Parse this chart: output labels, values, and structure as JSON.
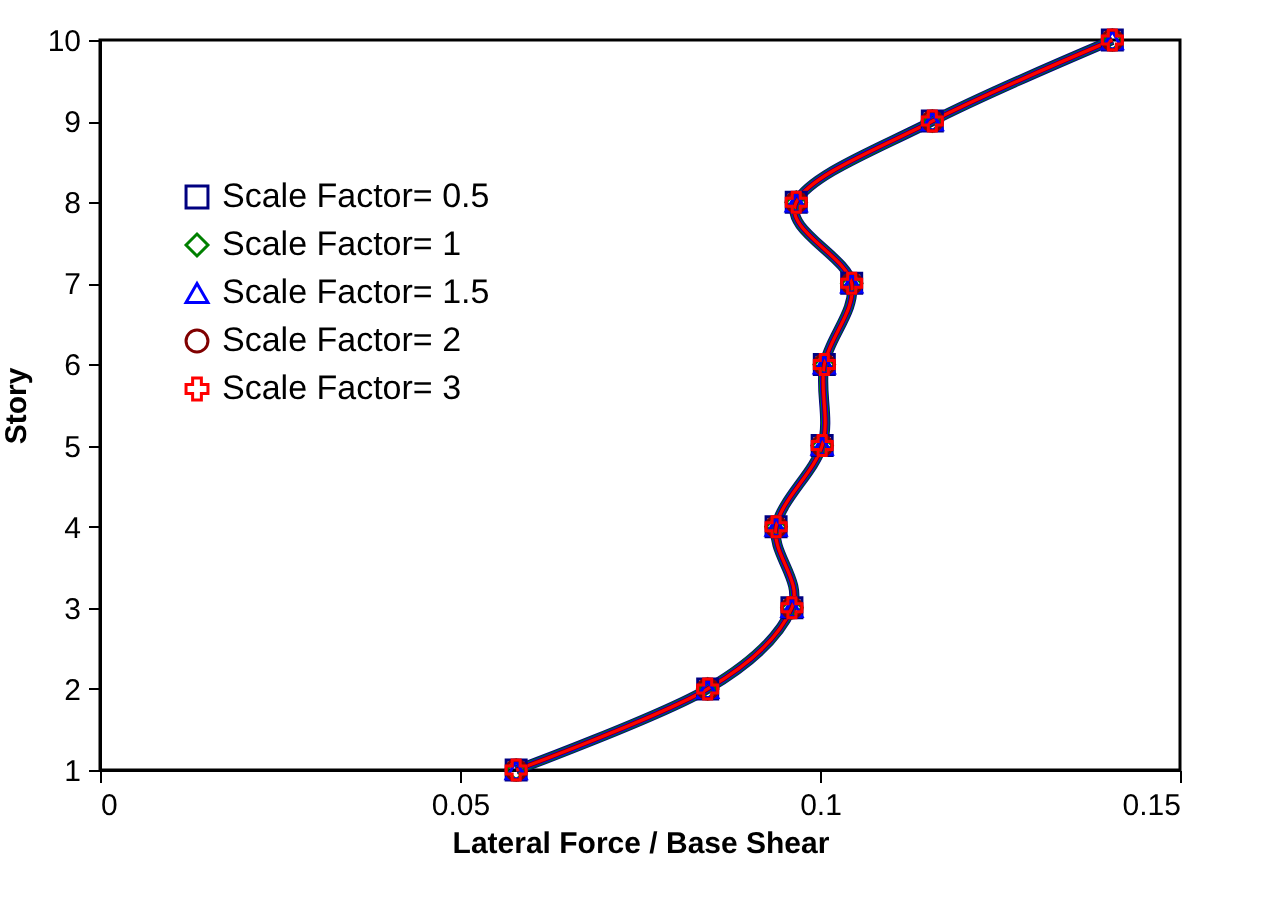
{
  "chart_data": {
    "type": "line",
    "xlabel": "Lateral Force / Base Shear",
    "ylabel": "Story",
    "xlim": [
      0,
      0.15
    ],
    "xticks": [
      0,
      0.05,
      0.1,
      0.15
    ],
    "ylim": [
      1,
      10
    ],
    "yticks": [
      1,
      2,
      3,
      4,
      5,
      6,
      7,
      8,
      9,
      10
    ],
    "grid": false,
    "legend": "top left",
    "line_style": "solid",
    "x": [
      0.0578,
      0.0844,
      0.0961,
      0.0939,
      0.1003,
      0.1006,
      0.1044,
      0.0967,
      0.1156,
      0.1406
    ],
    "series": [
      {
        "name": "Scale Factor= 0.5",
        "color": "#000080",
        "marker": "square",
        "values": [
          1,
          2,
          3,
          4,
          5,
          6,
          7,
          8,
          9,
          10
        ]
      },
      {
        "name": "Scale Factor= 1",
        "color": "#008000",
        "marker": "diamond",
        "values": [
          1,
          2,
          3,
          4,
          5,
          6,
          7,
          8,
          9,
          10
        ]
      },
      {
        "name": "Scale Factor= 1.5",
        "color": "#0000ff",
        "marker": "triangle",
        "values": [
          1,
          2,
          3,
          4,
          5,
          6,
          7,
          8,
          9,
          10
        ]
      },
      {
        "name": "Scale Factor= 2",
        "color": "#800000",
        "marker": "circle",
        "values": [
          1,
          2,
          3,
          4,
          5,
          6,
          7,
          8,
          9,
          10
        ]
      },
      {
        "name": "Scale Factor= 3",
        "color": "#ff0000",
        "marker": "cross",
        "values": [
          1,
          2,
          3,
          4,
          5,
          6,
          7,
          8,
          9,
          10
        ]
      }
    ]
  }
}
